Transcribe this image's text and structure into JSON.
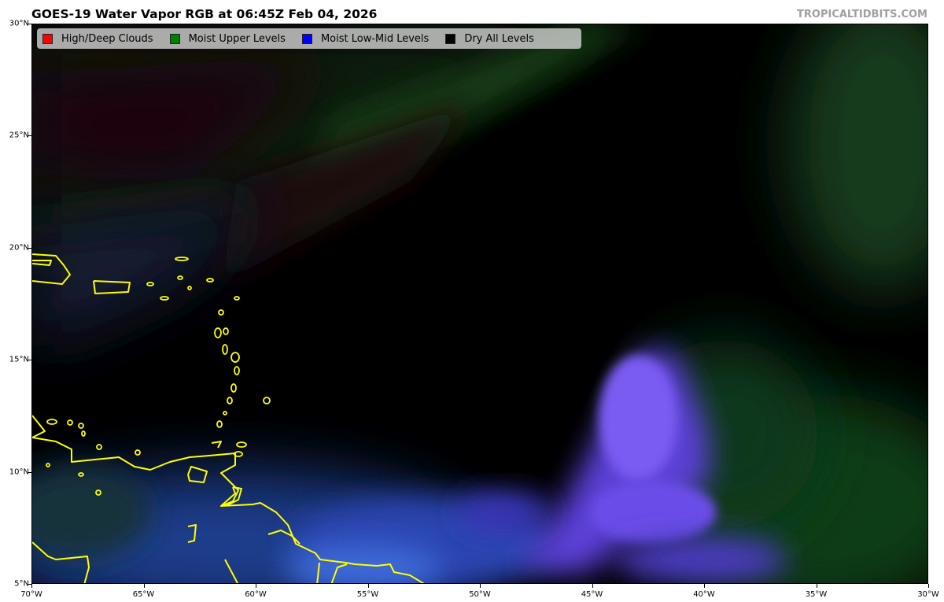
{
  "header": {
    "title": "GOES-19 Water Vapor RGB at 06:45Z Feb 04, 2026",
    "credit": "TROPICALTIDBITS.COM"
  },
  "legend": {
    "items": [
      {
        "label": "High/Deep Clouds",
        "color": "#ff0000"
      },
      {
        "label": "Moist Upper Levels",
        "color": "#008000"
      },
      {
        "label": "Moist Low-Mid Levels",
        "color": "#0000ff"
      },
      {
        "label": "Dry All Levels",
        "color": "#000000"
      }
    ]
  },
  "axes": {
    "lat_labels": [
      "30°N",
      "25°N",
      "20°N",
      "15°N",
      "10°N",
      "5°N"
    ],
    "lon_labels": [
      "70°W",
      "65°W",
      "60°W",
      "55°W",
      "50°W",
      "45°W",
      "40°W",
      "35°W",
      "30°W"
    ],
    "lat_range": [
      5,
      30
    ],
    "lon_range": [
      -70,
      -30
    ]
  },
  "colors": {
    "coastline": "#ffff00",
    "background": "#000000"
  }
}
